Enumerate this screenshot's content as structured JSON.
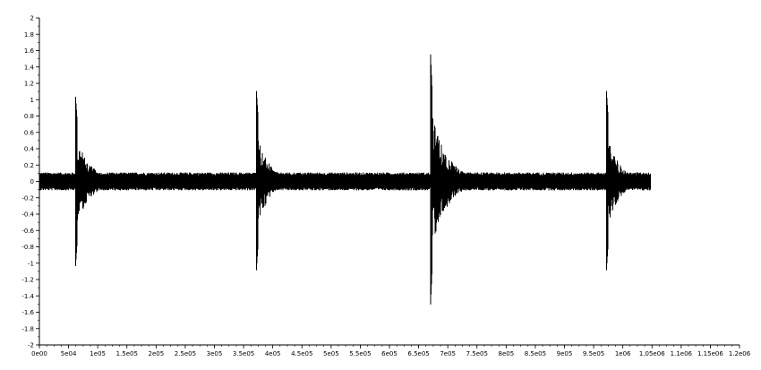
{
  "chart_data": {
    "type": "line",
    "title": "",
    "xlabel": "",
    "ylabel": "",
    "xlim": [
      0,
      1200000
    ],
    "ylim": [
      -2,
      2
    ],
    "grid": false,
    "line_color": "#000000",
    "x_ticks": [
      {
        "value": 0,
        "label": "0e00"
      },
      {
        "value": 50000,
        "label": "5e04"
      },
      {
        "value": 100000,
        "label": "1e05"
      },
      {
        "value": 150000,
        "label": "1.5e05"
      },
      {
        "value": 200000,
        "label": "2e05"
      },
      {
        "value": 250000,
        "label": "2.5e05"
      },
      {
        "value": 300000,
        "label": "3e05"
      },
      {
        "value": 350000,
        "label": "3.5e05"
      },
      {
        "value": 400000,
        "label": "4e05"
      },
      {
        "value": 450000,
        "label": "4.5e05"
      },
      {
        "value": 500000,
        "label": "5e05"
      },
      {
        "value": 550000,
        "label": "5.5e05"
      },
      {
        "value": 600000,
        "label": "6e05"
      },
      {
        "value": 650000,
        "label": "6.5e05"
      },
      {
        "value": 700000,
        "label": "7e05"
      },
      {
        "value": 750000,
        "label": "7.5e05"
      },
      {
        "value": 800000,
        "label": "8e05"
      },
      {
        "value": 850000,
        "label": "8.5e05"
      },
      {
        "value": 900000,
        "label": "9e05"
      },
      {
        "value": 950000,
        "label": "9.5e05"
      },
      {
        "value": 1000000,
        "label": "1e06"
      },
      {
        "value": 1050000,
        "label": "1.05e06"
      },
      {
        "value": 1100000,
        "label": "1.1e06"
      },
      {
        "value": 1150000,
        "label": "1.15e06"
      },
      {
        "value": 1200000,
        "label": "1.2e06"
      }
    ],
    "y_ticks": [
      {
        "value": 2,
        "label": "2"
      },
      {
        "value": 1.8,
        "label": "1.8"
      },
      {
        "value": 1.6,
        "label": "1.6"
      },
      {
        "value": 1.4,
        "label": "1.4"
      },
      {
        "value": 1.2,
        "label": "1.2"
      },
      {
        "value": 1,
        "label": "1"
      },
      {
        "value": 0.8,
        "label": "0.8"
      },
      {
        "value": 0.6,
        "label": "0.6"
      },
      {
        "value": 0.4,
        "label": "0.4"
      },
      {
        "value": 0.2,
        "label": "0.2"
      },
      {
        "value": 0,
        "label": "0"
      },
      {
        "value": -0.2,
        "label": "-0.2"
      },
      {
        "value": -0.4,
        "label": "-0.4"
      },
      {
        "value": -0.6,
        "label": "-0.6"
      },
      {
        "value": -0.8,
        "label": "-0.8"
      },
      {
        "value": -1,
        "label": "-1"
      },
      {
        "value": -1.2,
        "label": "-1.2"
      },
      {
        "value": -1.4,
        "label": "-1.4"
      },
      {
        "value": -1.6,
        "label": "-1.6"
      },
      {
        "value": -1.8,
        "label": "-1.8"
      },
      {
        "value": -2,
        "label": "-2"
      }
    ],
    "signal": {
      "x_start": 0,
      "x_end": 1048000,
      "noise_amplitude": 0.1,
      "bursts": [
        {
          "onset": 62000,
          "peak_max": 1.05,
          "peak_min": -1.05,
          "decay_length": 70000
        },
        {
          "onset": 372000,
          "peak_max": 1.12,
          "peak_min": -1.1,
          "decay_length": 60000
        },
        {
          "onset": 670000,
          "peak_max": 1.65,
          "peak_min": -1.6,
          "decay_length": 80000
        },
        {
          "onset": 972000,
          "peak_max": 1.12,
          "peak_min": -1.1,
          "decay_length": 60000
        }
      ]
    }
  }
}
